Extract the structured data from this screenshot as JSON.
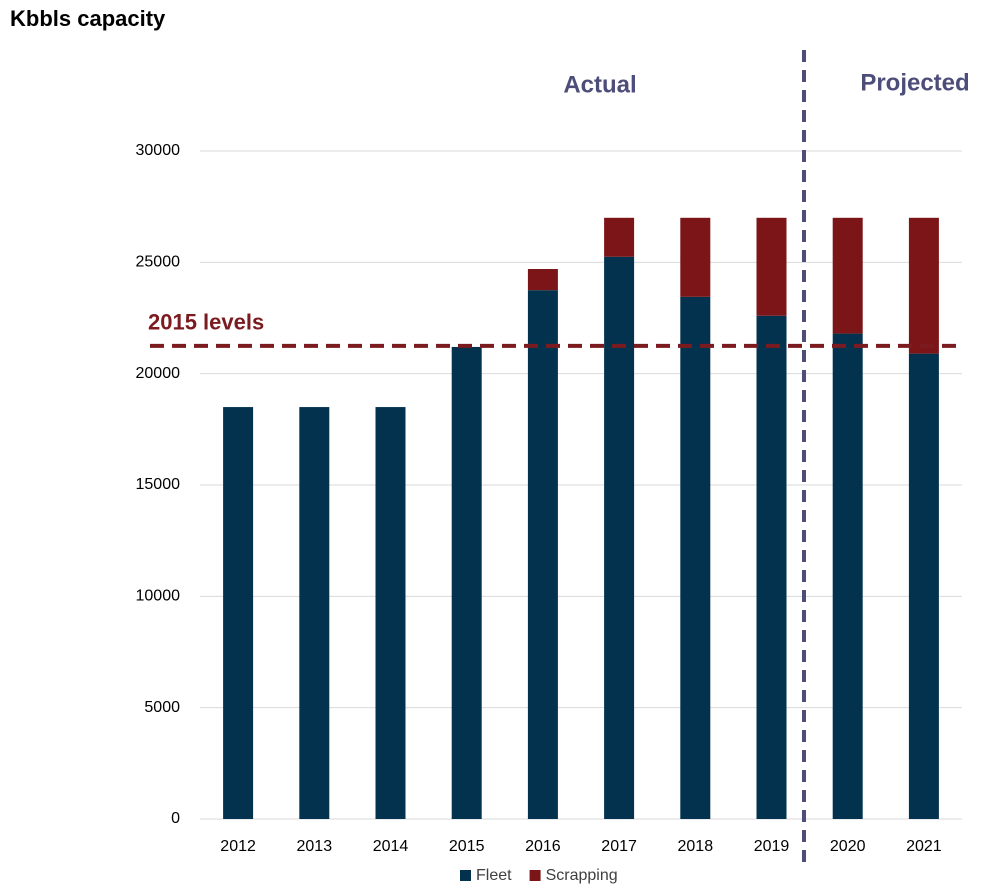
{
  "chart_data": {
    "type": "stacked_bar",
    "y_axis_title": "Kbbls capacity",
    "annotations": [
      "Actual",
      "Projected"
    ],
    "reference_line": {
      "label": "2015 levels",
      "value": 21250,
      "color": "#7b1b1f"
    },
    "categories": [
      "2012",
      "2013",
      "2014",
      "2015",
      "2016",
      "2017",
      "2018",
      "2019",
      "2020",
      "2021"
    ],
    "series": [
      {
        "name": "Fleet",
        "color": "#03324f",
        "values": [
          18500,
          18500,
          18500,
          21200,
          23750,
          25250,
          23450,
          22600,
          21800,
          20900
        ]
      },
      {
        "name": "Scrapping",
        "color": "#7b1518",
        "values": [
          0,
          0,
          0,
          0,
          950,
          1750,
          3550,
          4400,
          5200,
          6100
        ]
      }
    ],
    "ylim": [
      0,
      30000
    ],
    "yticks": [
      0,
      5000,
      10000,
      15000,
      20000,
      25000,
      30000
    ],
    "grid": true,
    "legend": "bottom"
  }
}
